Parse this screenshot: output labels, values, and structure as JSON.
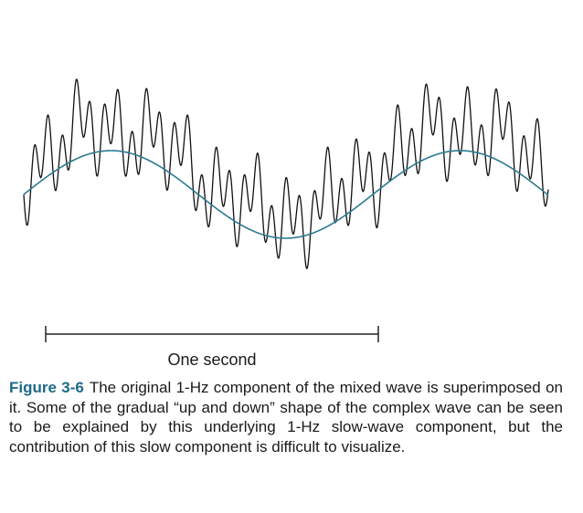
{
  "figure": {
    "scale_label": "One second",
    "label": "Figure 3-6",
    "caption": "The original 1-Hz component of the mixed wave is superimposed on it. Some of the gradual “up and down” shape of the complex wave can be seen to be explained by this underlying 1-Hz slow-wave component, but the contribution of this slow component is difficult to visualize."
  },
  "colors": {
    "slow_wave": "#2c7a92",
    "complex_wave": "#111111",
    "caption_label": "#1d6a87"
  }
}
